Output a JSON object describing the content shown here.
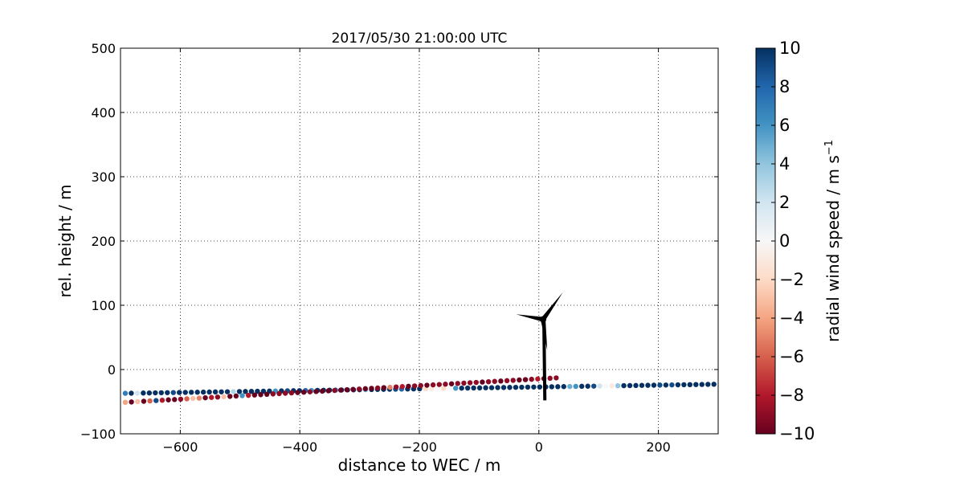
{
  "chart_data": {
    "type": "scatter",
    "title": "2017/05/30 21:00:00 UTC",
    "xlabel": "distance to WEC / m",
    "ylabel": "rel. height / m",
    "xlim": [
      -700,
      300
    ],
    "ylim": [
      -100,
      500
    ],
    "xticks": [
      -600,
      -400,
      -200,
      0,
      200
    ],
    "yticks": [
      -100,
      0,
      100,
      200,
      300,
      400,
      500
    ],
    "xtick_labels": [
      "−600",
      "−400",
      "−200",
      "0",
      "200"
    ],
    "ytick_labels": [
      "−100",
      "0",
      "100",
      "200",
      "300",
      "400",
      "500"
    ],
    "grid": true,
    "colorbar": {
      "label": "radial wind speed / m s",
      "label_superscript": "−1",
      "range": [
        -10,
        10
      ],
      "colormap": "RdBu",
      "ticks": [
        -10,
        -8,
        -6,
        -4,
        -2,
        0,
        2,
        4,
        6,
        8,
        10
      ],
      "tick_labels": [
        "−10",
        "−8",
        "−6",
        "−4",
        "−2",
        "0",
        "2",
        "4",
        "6",
        "8",
        "10"
      ]
    },
    "series": [
      {
        "x_start": -692,
        "x_step": 10.05,
        "y_start": -37,
        "y_end": -5,
        "values": [
          7,
          10,
          2,
          10,
          10,
          10,
          10,
          10,
          9,
          10,
          10,
          10,
          10,
          10,
          10,
          10,
          10,
          10,
          3,
          10,
          10,
          10,
          10,
          10,
          10,
          6,
          10,
          9,
          10,
          10,
          8,
          6,
          10,
          10,
          10,
          8,
          10,
          10,
          10,
          10,
          5,
          10,
          10,
          10,
          10,
          9,
          8,
          10,
          10,
          10,
          -2,
          -1,
          0,
          -2,
          0,
          6,
          10,
          10,
          10,
          10,
          10,
          10,
          10,
          10,
          10,
          10,
          10,
          10,
          10,
          10,
          10,
          10,
          10,
          10,
          5,
          6,
          10,
          10,
          9,
          2,
          0,
          -1,
          4,
          10,
          10,
          10,
          10,
          10,
          10,
          9,
          10,
          9,
          10,
          10,
          10,
          10,
          10,
          10,
          10,
          10,
          10,
          10,
          9,
          10,
          10,
          10,
          10,
          10,
          10,
          10,
          10,
          10,
          10,
          10,
          10,
          10,
          10,
          10,
          10,
          10,
          10,
          10,
          10,
          10,
          10,
          10,
          10,
          10,
          10,
          10,
          10,
          10,
          10,
          10,
          10,
          10,
          10,
          10,
          10,
          10,
          10,
          9,
          10,
          10,
          8,
          10,
          10,
          10,
          10,
          10,
          10,
          10,
          10,
          10,
          10,
          10,
          10,
          10,
          10,
          10,
          10,
          10,
          10,
          10,
          10,
          10,
          10,
          10,
          10,
          10,
          10,
          10,
          10,
          10,
          8,
          10,
          10,
          5,
          10,
          10,
          10,
          10,
          10,
          10,
          10,
          10,
          10,
          10,
          10,
          10,
          10,
          10,
          10,
          10,
          10,
          10,
          10,
          10,
          10,
          10,
          10,
          10,
          10,
          10,
          10,
          8,
          10,
          -9,
          10,
          10,
          10,
          10,
          10,
          -7,
          2,
          2,
          2,
          10,
          1,
          10,
          10,
          10,
          10,
          1
        ]
      },
      {
        "x_start": -692,
        "x_step": 10.3,
        "y_start": -51,
        "y_end": -13,
        "values": [
          -4,
          -10,
          -3,
          -10,
          -6,
          9,
          -8,
          -10,
          -10,
          -9,
          -6,
          -3,
          -5,
          -10,
          -8,
          -9,
          -3,
          -10,
          -10,
          6,
          -8,
          -10,
          -10,
          -10,
          -9,
          -9,
          -9,
          -9,
          -10,
          -10,
          -9,
          -10,
          -10,
          -10,
          -9,
          -10,
          -10,
          -10,
          -9,
          -10,
          -10,
          -9,
          -10,
          -5,
          -9,
          -8,
          -10,
          -9,
          -9,
          -10,
          -9,
          -9,
          -9,
          -10,
          -9,
          -9,
          -9,
          -9,
          -10,
          -9,
          -9,
          -10,
          -9,
          -9,
          -10,
          -10,
          -9,
          -8,
          -10,
          -9,
          -9
        ]
      }
    ],
    "turbine": {
      "tower_base": [
        10,
        -48
      ],
      "hub": [
        7,
        78
      ],
      "blade_tips": [
        [
          -38,
          86
        ],
        [
          40,
          120
        ],
        [
          14,
          30
        ]
      ]
    }
  }
}
